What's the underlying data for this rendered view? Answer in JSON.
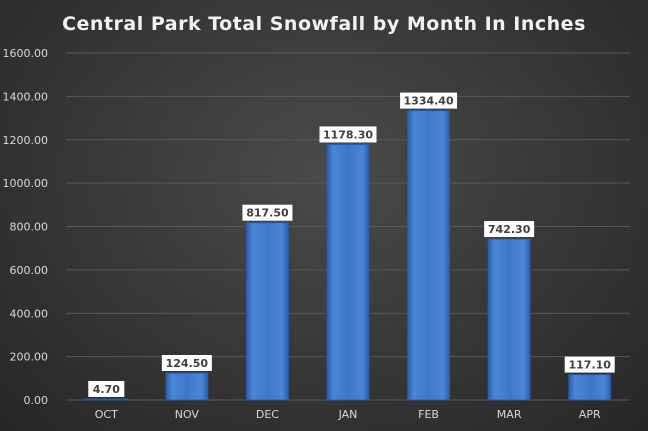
{
  "chart_data": {
    "type": "bar",
    "title": "Central Park Total Snowfall by Month In Inches",
    "xlabel": "",
    "ylabel": "",
    "categories": [
      "OCT",
      "NOV",
      "DEC",
      "JAN",
      "FEB",
      "MAR",
      "APR"
    ],
    "values": [
      4.7,
      124.5,
      817.5,
      1178.3,
      1334.4,
      742.3,
      117.1
    ],
    "data_labels": [
      "4.70",
      "124.50",
      "817.50",
      "1178.30",
      "1334.40",
      "742.30",
      "117.10"
    ],
    "yticks": [
      0,
      200,
      400,
      600,
      800,
      1000,
      1200,
      1400,
      1600
    ],
    "ytick_labels": [
      "0.00",
      "200.00",
      "400.00",
      "600.00",
      "800.00",
      "1000.00",
      "1200.00",
      "1400.00",
      "1600.00"
    ],
    "ylim": [
      0,
      1600
    ],
    "grid": true,
    "legend": "none",
    "colors": {
      "bar": "#3f76c7",
      "bar_edge": "#2b5aa0",
      "grid": "#595959",
      "label_bg": "#ffffff",
      "text": "#d9d9d9",
      "title": "#f2f2f2"
    }
  }
}
